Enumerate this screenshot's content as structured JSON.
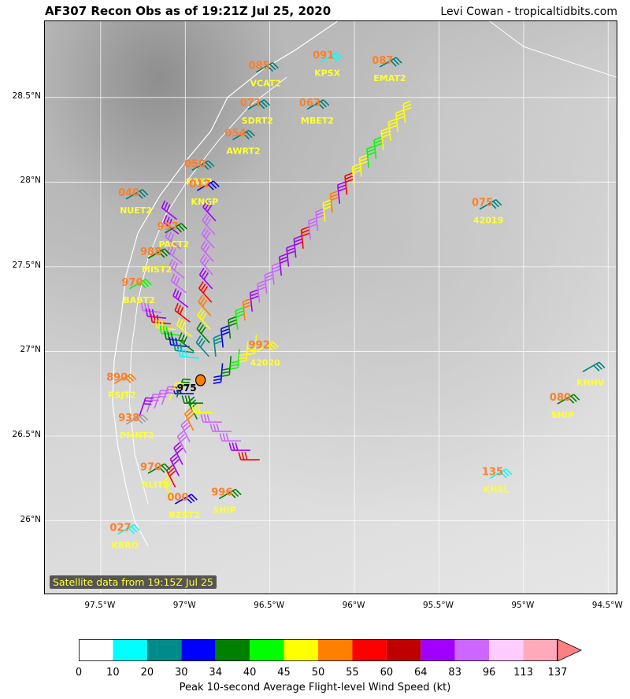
{
  "header": {
    "title": "AF307 Recon Obs as of 19:21Z Jul 25, 2020",
    "credit": "Levi Cowan - tropicaltidbits.com"
  },
  "axes": {
    "y_ticks": [
      "28.5°N",
      "28°N",
      "27.5°N",
      "27°N",
      "26.5°N",
      "26°N"
    ],
    "y_values": [
      28.5,
      28.0,
      27.5,
      27.0,
      26.5,
      26.0
    ],
    "x_ticks": [
      "97.5°W",
      "97°W",
      "96.5°W",
      "96°W",
      "95.5°W",
      "95°W",
      "94.5°W"
    ],
    "x_values": [
      -97.5,
      -97.0,
      -96.5,
      -96.0,
      -95.5,
      -95.0,
      -94.5
    ],
    "lon_range": [
      -97.83,
      -94.45
    ],
    "lat_range": [
      25.57,
      28.95
    ]
  },
  "satellite_caption": "Satellite data from 19:15Z Jul 25",
  "center_pressure": "975",
  "stations": [
    {
      "id": "VCAT2",
      "value": "085",
      "lon": -96.58,
      "lat": 28.65,
      "color": "#008080"
    },
    {
      "id": "KPSX",
      "value": "091",
      "lon": -96.2,
      "lat": 28.71,
      "color": "#00ffff"
    },
    {
      "id": "EMAT2",
      "value": "087",
      "lon": -95.85,
      "lat": 28.68,
      "color": "#008080"
    },
    {
      "id": "SDRT2",
      "value": "071",
      "lon": -96.63,
      "lat": 28.43,
      "color": "#008080"
    },
    {
      "id": "MBET2",
      "value": "063",
      "lon": -96.28,
      "lat": 28.43,
      "color": "#008080"
    },
    {
      "id": "AWRT2",
      "value": "054",
      "lon": -96.72,
      "lat": 28.25,
      "color": "#008080"
    },
    {
      "id": "KRKP",
      "value": "050",
      "lon": -96.96,
      "lat": 28.07,
      "color": "#008080"
    },
    {
      "id": "KNGP",
      "value": "012",
      "lon": -96.93,
      "lat": 27.95,
      "color": "#0000ff"
    },
    {
      "id": "NUET2",
      "value": "040",
      "lon": -97.35,
      "lat": 27.9,
      "color": "#008080"
    },
    {
      "id": "42019",
      "value": "075",
      "lon": -95.26,
      "lat": 27.84,
      "color": "#008080"
    },
    {
      "id": "PACT2",
      "value": "997",
      "lon": -97.12,
      "lat": 27.7,
      "color": "#008000"
    },
    {
      "id": "MIST2",
      "value": "988",
      "lon": -97.22,
      "lat": 27.55,
      "color": "#008000"
    },
    {
      "id": "BABT2",
      "value": "970",
      "lon": -97.33,
      "lat": 27.37,
      "color": "#00ff00"
    },
    {
      "id": "42020",
      "value": "992",
      "lon": -96.58,
      "lat": 27.0,
      "color": "#ffff00"
    },
    {
      "id": "RSJT2",
      "value": "890",
      "lon": -97.42,
      "lat": 26.81,
      "color": "#ff7f00"
    },
    {
      "id": "KHHV",
      "value": "",
      "lon": -94.65,
      "lat": 26.88,
      "color": "#008080"
    },
    {
      "id": "SHIP",
      "value": "080",
      "lon": -94.8,
      "lat": 26.69,
      "color": "#008000"
    },
    {
      "id": "PMNT2",
      "value": "938",
      "lon": -97.35,
      "lat": 26.57,
      "color": "#a0a0a0"
    },
    {
      "id": "RLIT2",
      "value": "970",
      "lon": -97.22,
      "lat": 26.28,
      "color": "#008000"
    },
    {
      "id": "BZST2",
      "value": "000",
      "lon": -97.06,
      "lat": 26.1,
      "color": "#0000ff"
    },
    {
      "id": "SHIP",
      "value": "996",
      "lon": -96.8,
      "lat": 26.13,
      "color": "#008000"
    },
    {
      "id": "KBRO",
      "value": "027",
      "lon": -97.4,
      "lat": 25.92,
      "color": "#00ffff"
    },
    {
      "id": "KHSL",
      "value": "135",
      "lon": -95.2,
      "lat": 26.25,
      "color": "#00ffff"
    }
  ],
  "flight_legs": [
    {
      "from": [
        -97.14,
        27.23
      ],
      "to": [
        -96.92,
        26.96
      ],
      "speeds": [
        83,
        64,
        55,
        45,
        40,
        34,
        30,
        20,
        10
      ]
    },
    {
      "from": [
        -96.82,
        27.77
      ],
      "to": [
        -96.86,
        26.97
      ],
      "speeds": [
        64,
        83,
        83,
        83,
        83,
        64,
        55,
        50,
        45,
        34,
        20
      ]
    },
    {
      "from": [
        -95.7,
        28.35
      ],
      "to": [
        -96.82,
        26.97
      ],
      "speeds": [
        45,
        45,
        45,
        45,
        40,
        40,
        45,
        45,
        55,
        64,
        50,
        45,
        83,
        83,
        55,
        64,
        64,
        64,
        83,
        83,
        83,
        64,
        50,
        40,
        34,
        30,
        20
      ]
    },
    {
      "from": [
        -97.05,
        27.78
      ],
      "to": [
        -96.95,
        27.0
      ],
      "speeds": [
        64,
        64,
        83,
        83,
        83,
        83,
        64,
        55,
        45,
        34
      ]
    },
    {
      "from": [
        -96.93,
        26.6
      ],
      "to": [
        -97.08,
        26.13
      ],
      "speeds": [
        34,
        50,
        83,
        83,
        64,
        64,
        55,
        45
      ]
    },
    {
      "from": [
        -96.95,
        26.75
      ],
      "to": [
        -96.56,
        26.36
      ],
      "speeds": [
        30,
        34,
        45,
        83,
        83,
        83,
        64,
        55
      ]
    },
    {
      "from": [
        -97.05,
        26.73
      ],
      "to": [
        -97.27,
        26.62
      ],
      "speeds": [
        34,
        45,
        83,
        83,
        83,
        64
      ]
    },
    {
      "from": [
        -96.78,
        26.93
      ],
      "to": [
        -96.58,
        27.1
      ],
      "speeds": [
        30,
        34,
        40,
        45,
        45
      ]
    }
  ],
  "colorbar": {
    "title": "Peak 10-second Average Flight-level Wind Speed (kt)",
    "labels": [
      "0",
      "10",
      "20",
      "30",
      "34",
      "40",
      "45",
      "50",
      "55",
      "60",
      "64",
      "83",
      "96",
      "113",
      "137"
    ],
    "colors": [
      "#ffffff",
      "#00ffff",
      "#008b8b",
      "#0000ff",
      "#008000",
      "#00ff00",
      "#ffff00",
      "#ff7f00",
      "#ff0000",
      "#c00000",
      "#a000ff",
      "#cc66ff",
      "#ffccff",
      "#ffaabb"
    ],
    "extend_color": "#ff8080"
  }
}
